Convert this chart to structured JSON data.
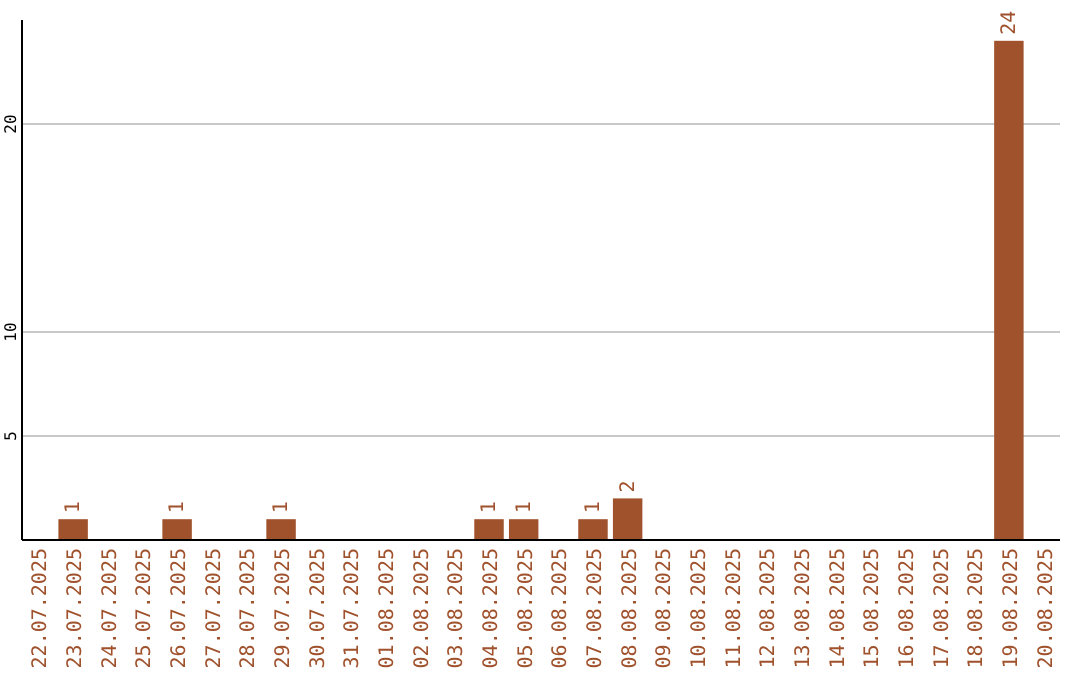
{
  "chart_data": {
    "type": "bar",
    "categories": [
      "22.07.2025",
      "23.07.2025",
      "24.07.2025",
      "25.07.2025",
      "26.07.2025",
      "27.07.2025",
      "28.07.2025",
      "29.07.2025",
      "30.07.2025",
      "31.07.2025",
      "01.08.2025",
      "02.08.2025",
      "03.08.2025",
      "04.08.2025",
      "05.08.2025",
      "06.08.2025",
      "07.08.2025",
      "08.08.2025",
      "09.08.2025",
      "10.08.2025",
      "11.08.2025",
      "12.08.2025",
      "13.08.2025",
      "14.08.2025",
      "15.08.2025",
      "16.08.2025",
      "17.08.2025",
      "18.08.2025",
      "19.08.2025",
      "20.08.2025"
    ],
    "values": [
      0,
      1,
      0,
      0,
      1,
      0,
      0,
      1,
      0,
      0,
      0,
      0,
      0,
      1,
      1,
      0,
      1,
      2,
      0,
      0,
      0,
      0,
      0,
      0,
      0,
      0,
      0,
      0,
      24,
      0
    ],
    "value_labels": [
      null,
      "1",
      null,
      null,
      "1",
      null,
      null,
      "1",
      null,
      null,
      null,
      null,
      null,
      "1",
      "1",
      null,
      "1",
      "2",
      null,
      null,
      null,
      null,
      null,
      null,
      null,
      null,
      null,
      null,
      "24",
      null
    ],
    "color": "#a0522d",
    "ylim": [
      0,
      25
    ],
    "yticks": [
      5,
      10,
      20
    ],
    "grid": "y"
  }
}
